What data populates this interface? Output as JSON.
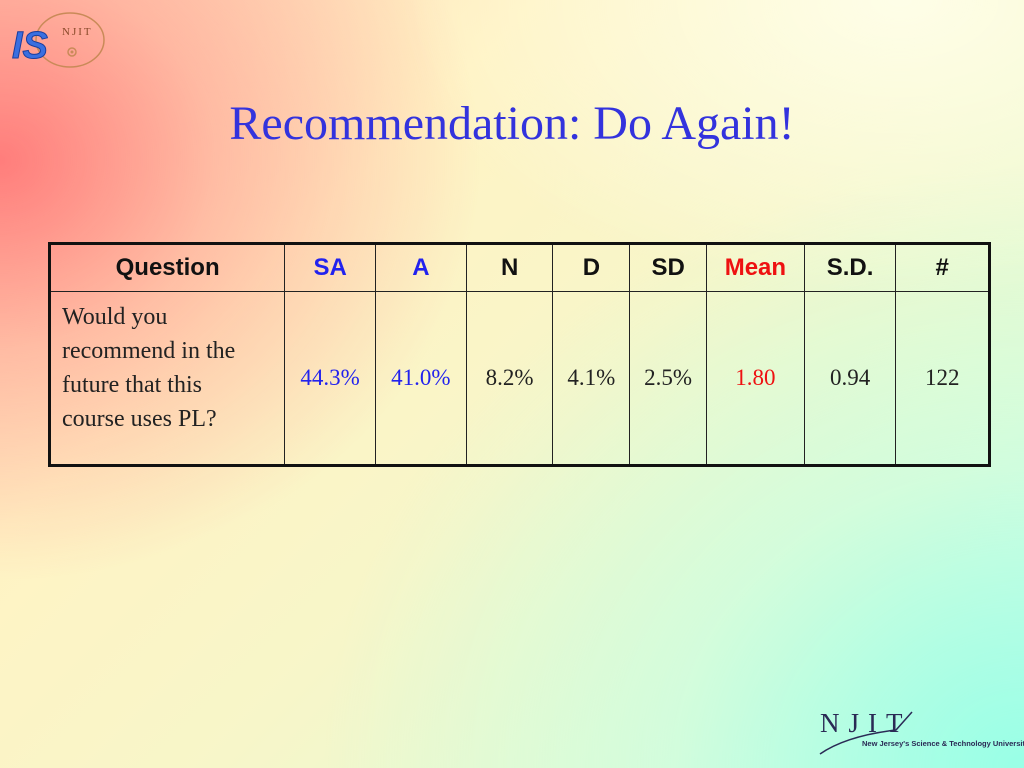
{
  "logo": {
    "is_text": "IS",
    "njit_small": "NJIT"
  },
  "slide": {
    "title": "Recommendation: Do Again!"
  },
  "table": {
    "headers": [
      "Question",
      "SA",
      "A",
      "N",
      "D",
      "SD",
      "Mean",
      "S.D.",
      "#"
    ],
    "row": {
      "question": "Would you recommend in the future that this course uses PL?",
      "question_lines": [
        "Would you",
        "recommend in the",
        "future that this",
        "course uses PL?"
      ],
      "values": [
        "44.3%",
        "41.0%",
        "8.2%",
        "4.1%",
        "2.5%",
        "1.80",
        "0.94",
        "122"
      ]
    }
  },
  "footer": {
    "njit_logo_text": "NJIT",
    "tagline": "New Jersey's Science & Technology University"
  },
  "colors": {
    "title": "#3333dd",
    "sa_a_highlight": "#2222ee",
    "mean_highlight": "#ee1111"
  }
}
